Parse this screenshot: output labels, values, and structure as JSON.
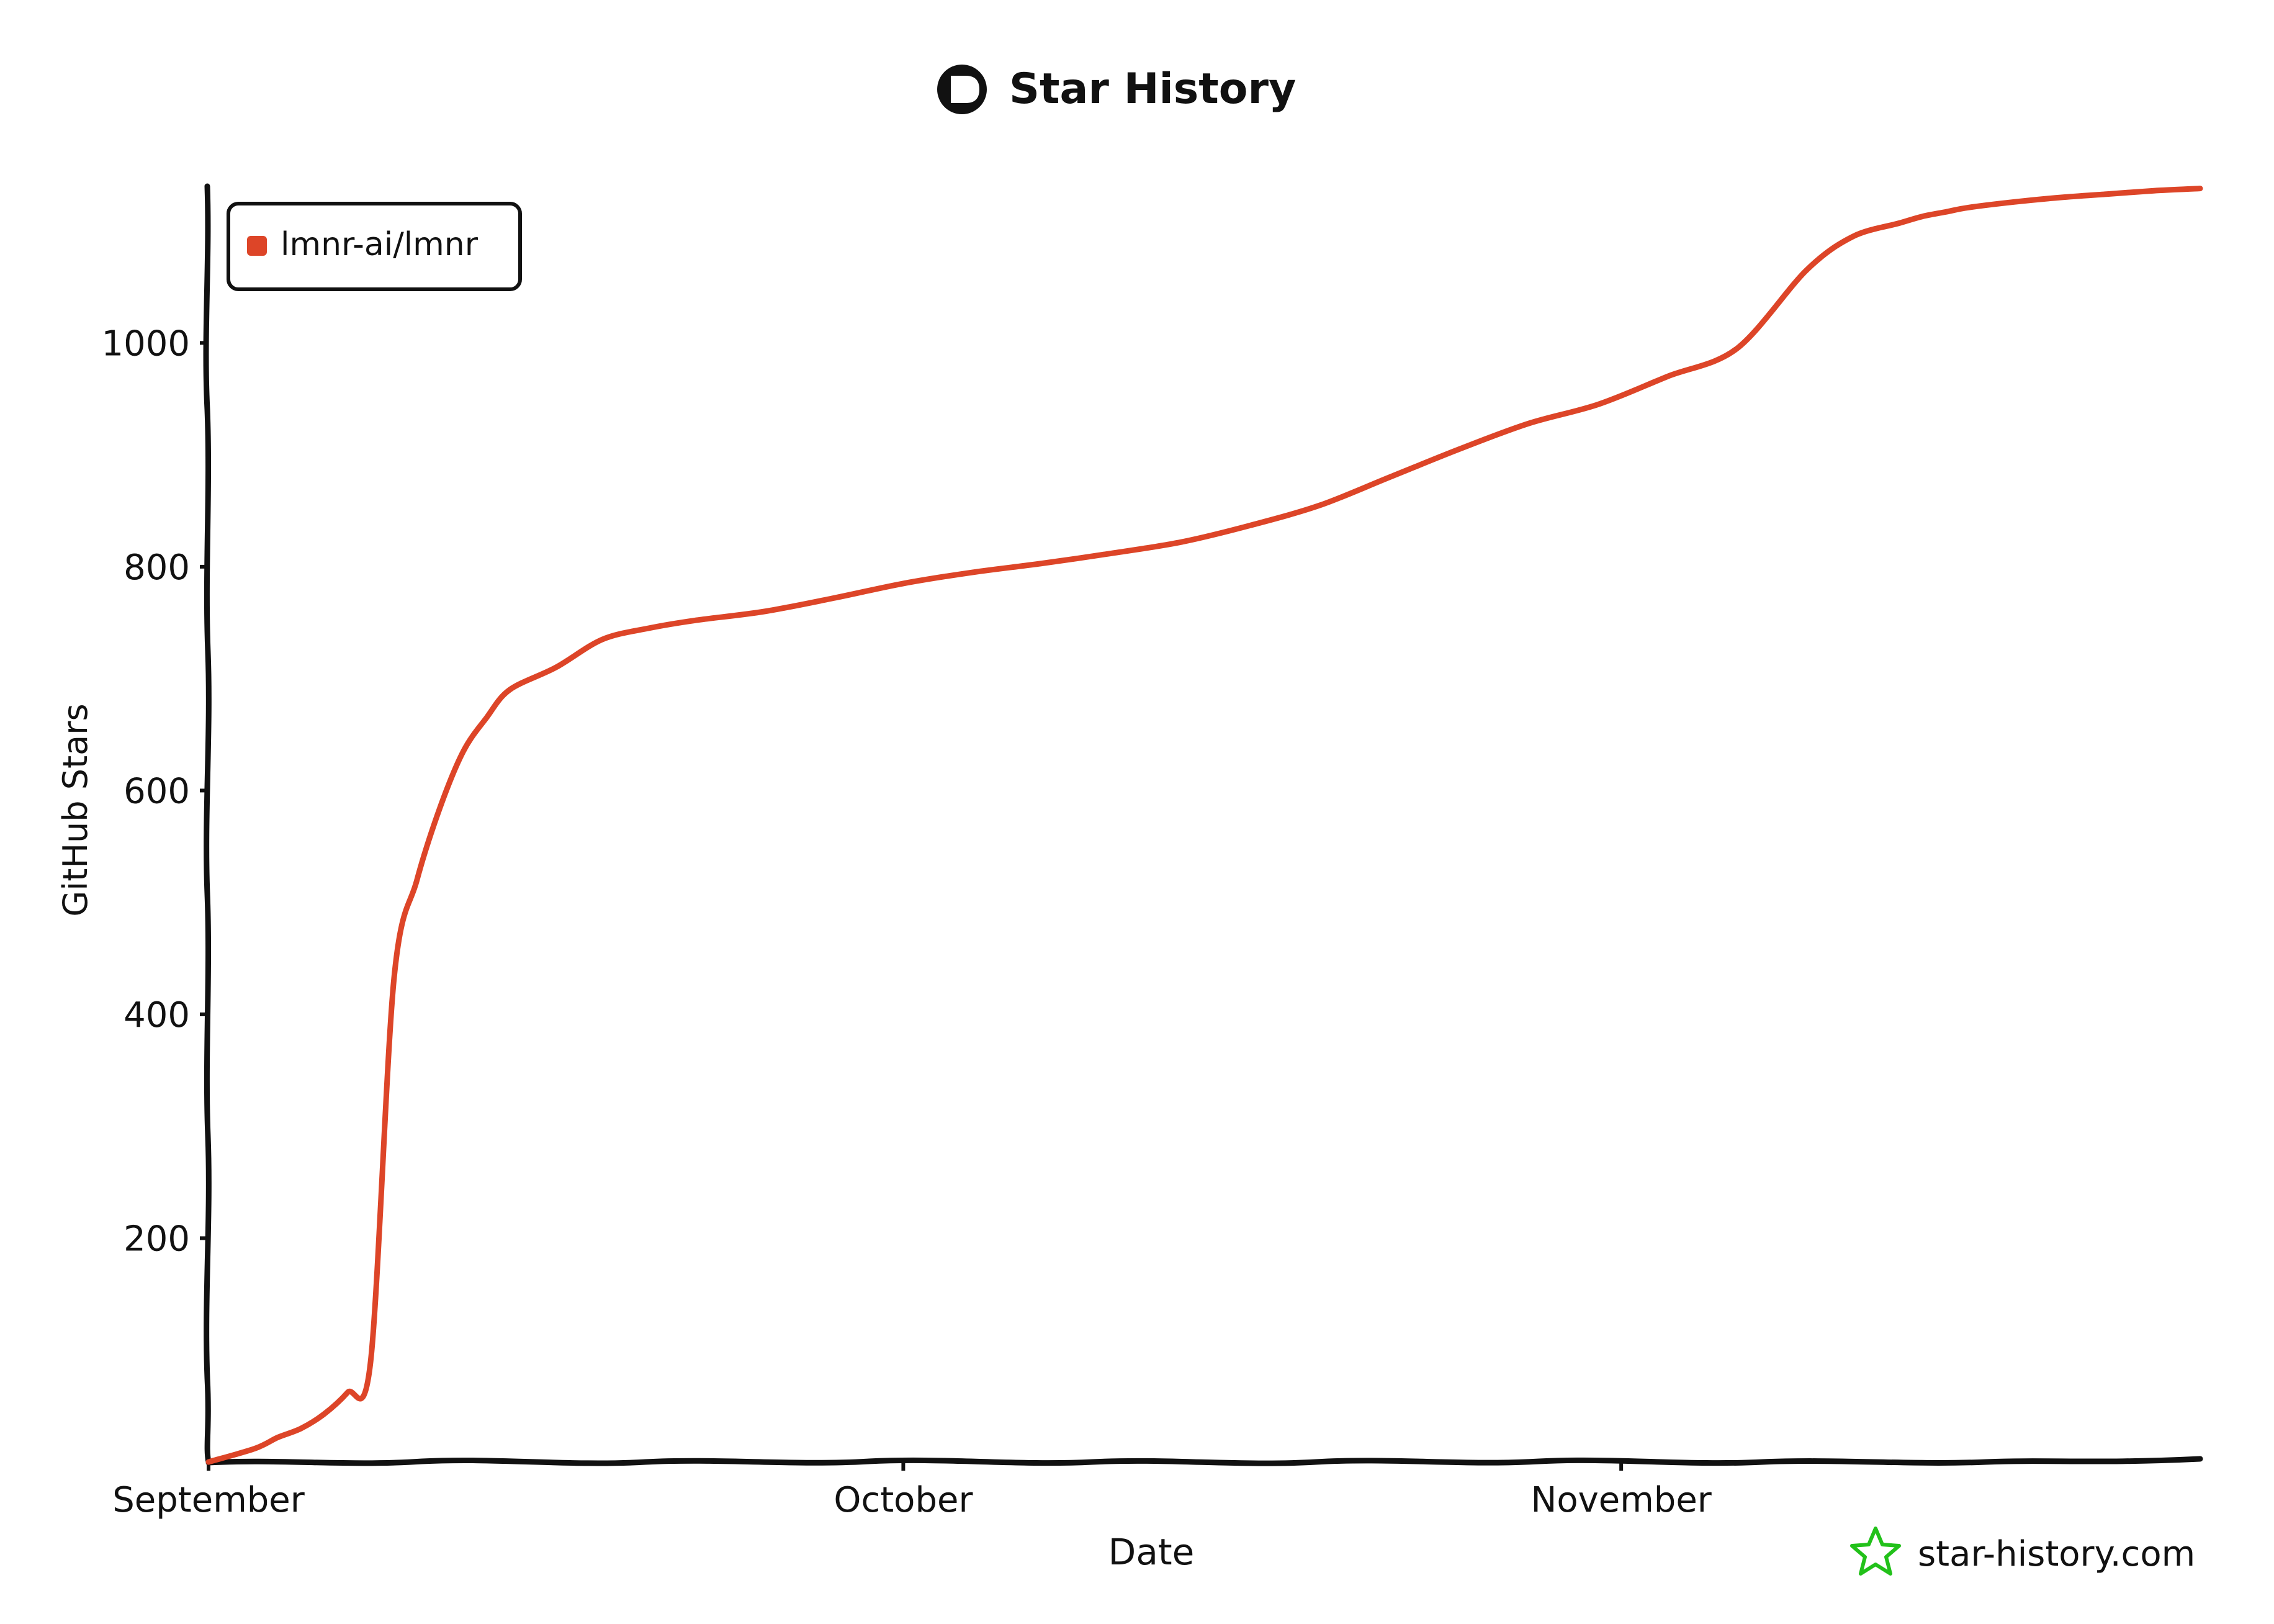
{
  "chart_data": {
    "type": "line",
    "title": "Star History",
    "xlabel": "Date",
    "ylabel": "GitHub Stars",
    "x_ticks": [
      "September",
      "October",
      "November"
    ],
    "y_ticks": [
      200,
      400,
      600,
      800,
      1000
    ],
    "ylim": [
      0,
      1140
    ],
    "legend_position": "top-left",
    "grid": false,
    "series": [
      {
        "name": "lmnr-ai/lmnr",
        "color": "#dd4528",
        "x": [
          "2024-09-01",
          "2024-09-03",
          "2024-09-04",
          "2024-09-05",
          "2024-09-06",
          "2024-09-07",
          "2024-09-08",
          "2024-09-09",
          "2024-09-10",
          "2024-09-11",
          "2024-09-12",
          "2024-09-13",
          "2024-09-14",
          "2024-09-16",
          "2024-09-18",
          "2024-09-20",
          "2024-09-22",
          "2024-09-25",
          "2024-09-28",
          "2024-10-01",
          "2024-10-04",
          "2024-10-07",
          "2024-10-10",
          "2024-10-13",
          "2024-10-16",
          "2024-10-19",
          "2024-10-22",
          "2024-10-25",
          "2024-10-28",
          "2024-10-31",
          "2024-11-03",
          "2024-11-06",
          "2024-11-09",
          "2024-11-11",
          "2024-11-13",
          "2024-11-14",
          "2024-11-15",
          "2024-11-16",
          "2024-11-18",
          "2024-11-20",
          "2024-11-22",
          "2024-11-24",
          "2024-11-26"
        ],
        "values": [
          0,
          12,
          22,
          30,
          43,
          62,
          90,
          430,
          520,
          585,
          635,
          665,
          690,
          710,
          735,
          745,
          752,
          760,
          772,
          785,
          795,
          803,
          812,
          822,
          837,
          855,
          880,
          905,
          928,
          945,
          970,
          995,
          1065,
          1095,
          1107,
          1113,
          1117,
          1121,
          1126,
          1130,
          1133,
          1136,
          1138
        ]
      }
    ]
  },
  "branding": {
    "title_icon": "star-history-logo-icon",
    "watermark_icon": "star-outline-icon",
    "watermark_text": "star-history.com",
    "watermark_color": "#22c11a"
  }
}
